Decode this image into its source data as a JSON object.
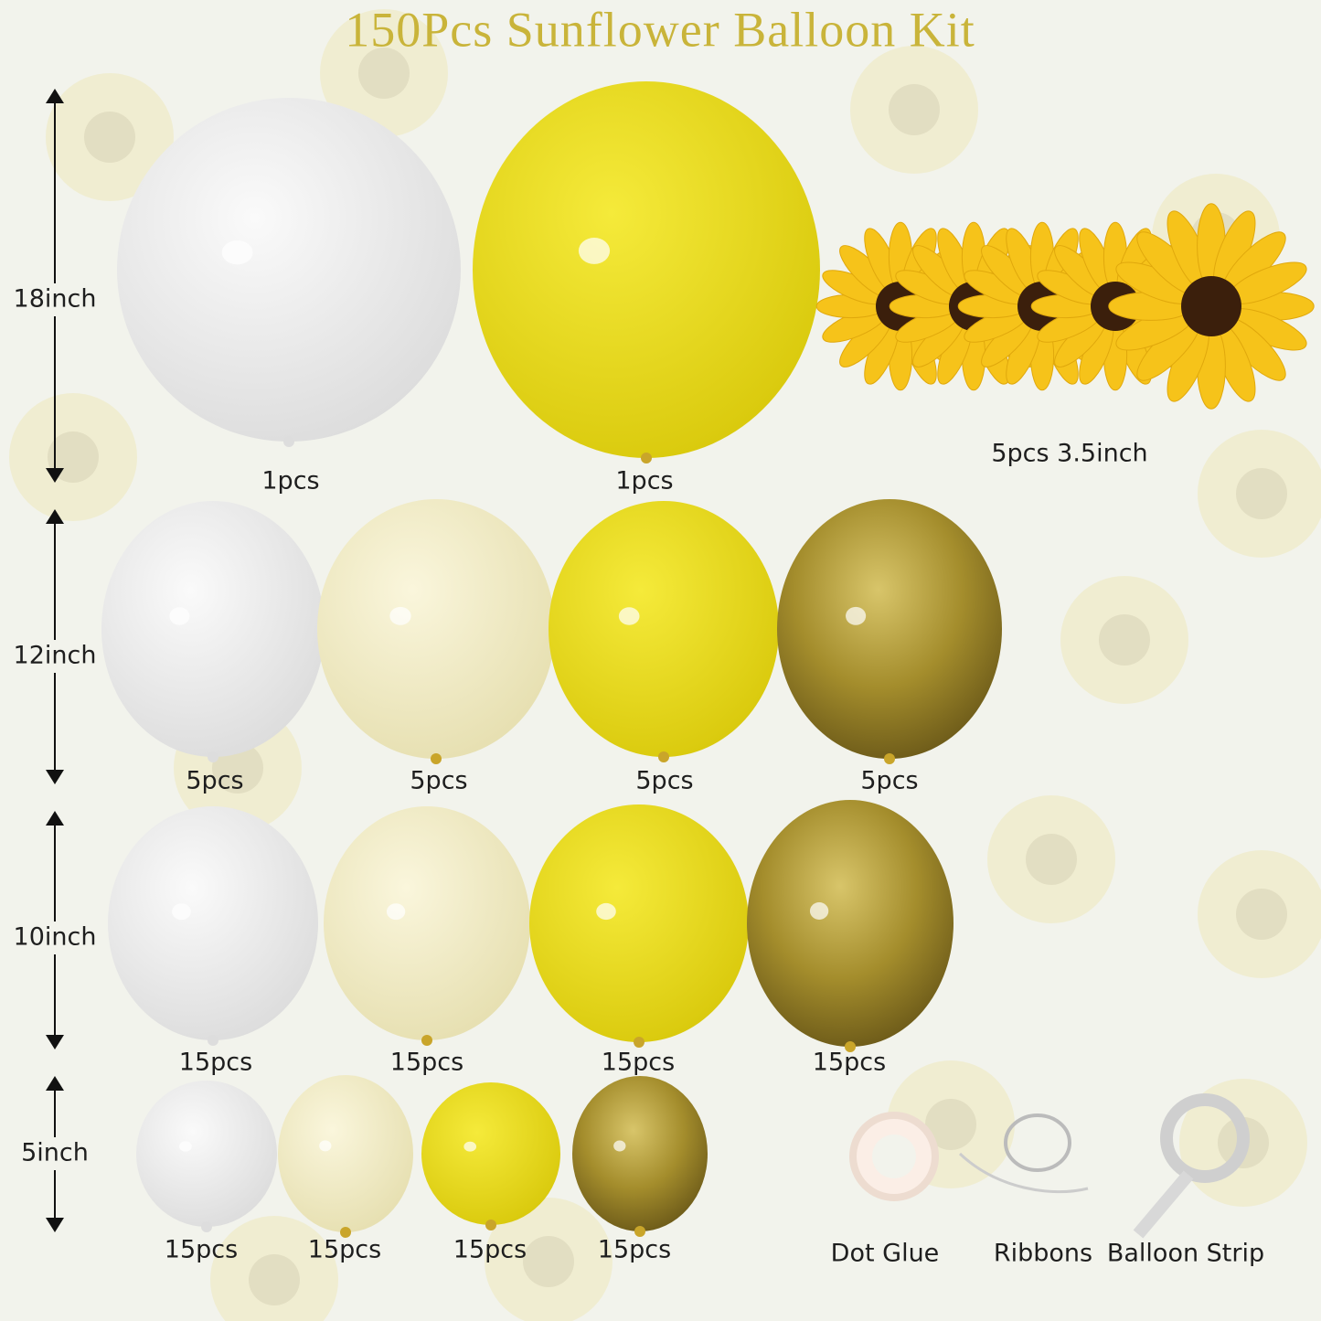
{
  "title": "150Pcs Sunflower Balloon Kit",
  "rows": [
    {
      "size": "18inch",
      "counts": [
        "1pcs",
        "1pcs"
      ]
    },
    {
      "size": "12inch",
      "counts": [
        "5pcs",
        "5pcs",
        "5pcs",
        "5pcs"
      ]
    },
    {
      "size": "10inch",
      "counts": [
        "15pcs",
        "15pcs",
        "15pcs",
        "15pcs"
      ]
    },
    {
      "size": "5inch",
      "counts": [
        "15pcs",
        "15pcs",
        "15pcs",
        "15pcs"
      ]
    }
  ],
  "sunflowers": "5pcs 3.5inch",
  "accessories": [
    "Dot Glue",
    "Ribbons",
    "Balloon Strip"
  ]
}
